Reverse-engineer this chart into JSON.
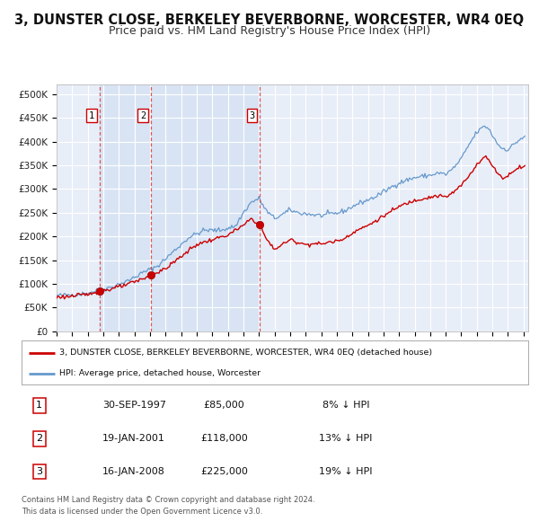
{
  "title": "3, DUNSTER CLOSE, BERKELEY BEVERBORNE, WORCESTER, WR4 0EQ",
  "subtitle": "Price paid vs. HM Land Registry's House Price Index (HPI)",
  "title_fontsize": 10.5,
  "subtitle_fontsize": 9,
  "xlim": [
    1995.0,
    2025.3
  ],
  "ylim": [
    0,
    520000
  ],
  "yticks": [
    0,
    50000,
    100000,
    150000,
    200000,
    250000,
    300000,
    350000,
    400000,
    450000,
    500000
  ],
  "xticks": [
    1995,
    1996,
    1997,
    1998,
    1999,
    2000,
    2001,
    2002,
    2003,
    2004,
    2005,
    2006,
    2007,
    2008,
    2009,
    2010,
    2011,
    2012,
    2013,
    2014,
    2015,
    2016,
    2017,
    2018,
    2019,
    2020,
    2021,
    2022,
    2023,
    2024,
    2025
  ],
  "sale_color": "#cc0000",
  "hpi_color": "#6699cc",
  "sale_marker_color": "#cc0000",
  "vline_color": "#dd4444",
  "background_chart": "#e8eef8",
  "background_between_vlines": "#d8e4f4",
  "background_fig": "#ffffff",
  "grid_color": "#ffffff",
  "sales": [
    {
      "date": 1997.75,
      "price": 85000,
      "label": "1"
    },
    {
      "date": 2001.05,
      "price": 118000,
      "label": "2"
    },
    {
      "date": 2008.05,
      "price": 225000,
      "label": "3"
    }
  ],
  "legend_line1": "3, DUNSTER CLOSE, BERKELEY BEVERBORNE, WORCESTER, WR4 0EQ (detached house)",
  "legend_line2": "HPI: Average price, detached house, Worcester",
  "table_rows": [
    {
      "num": "1",
      "date": "30-SEP-1997",
      "price": "£85,000",
      "pct": "8% ↓ HPI"
    },
    {
      "num": "2",
      "date": "19-JAN-2001",
      "price": "£118,000",
      "pct": "13% ↓ HPI"
    },
    {
      "num": "3",
      "date": "16-JAN-2008",
      "price": "£225,000",
      "pct": "19% ↓ HPI"
    }
  ],
  "footer": "Contains HM Land Registry data © Crown copyright and database right 2024.\nThis data is licensed under the Open Government Licence v3.0."
}
